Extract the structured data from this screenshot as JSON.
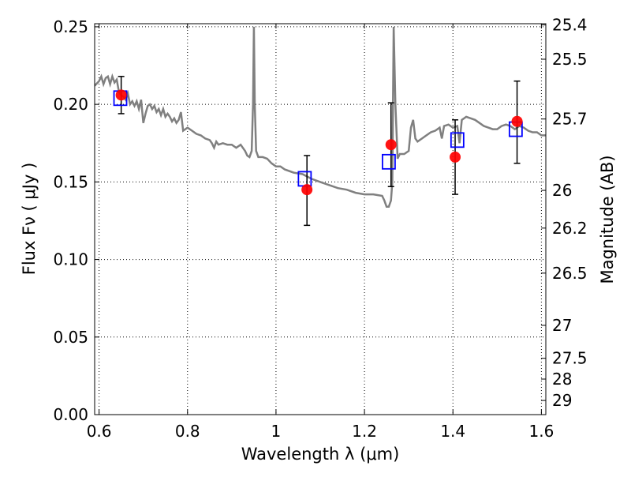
{
  "chart_data": {
    "type": "scatter",
    "xlabel": "Wavelength  λ (μm)",
    "ylabel": "Flux  Fν  ( μJy )",
    "y2label": "Magnitude (AB)",
    "xlim": [
      0.59,
      1.61
    ],
    "ylim": [
      0.0,
      0.252
    ],
    "grid": true,
    "x_ticks": [
      0.6,
      0.8,
      1.0,
      1.2,
      1.4,
      1.6
    ],
    "x_tick_labels": [
      "0.6",
      "0.8",
      "1",
      "1.2",
      "1.4",
      "1.6"
    ],
    "y_ticks": [
      0.0,
      0.05,
      0.1,
      0.15,
      0.2,
      0.25
    ],
    "y_tick_labels": [
      "0.00",
      "0.05",
      "0.10",
      "0.15",
      "0.20",
      "0.25"
    ],
    "y2_ticks": [
      {
        "label": "25.4",
        "mag": 25.4
      },
      {
        "label": "25.5",
        "mag": 25.5
      },
      {
        "label": "25.7",
        "mag": 25.7
      },
      {
        "label": "26",
        "mag": 26.0
      },
      {
        "label": "26.2",
        "mag": 26.2
      },
      {
        "label": "26.5",
        "mag": 26.5
      },
      {
        "label": "27",
        "mag": 27.0
      },
      {
        "label": "27.5",
        "mag": 27.5
      },
      {
        "label": "28",
        "mag": 28.0
      },
      {
        "label": "29",
        "mag": 29.0
      }
    ],
    "series": [
      {
        "kind": "line",
        "color": "#808080",
        "points": [
          [
            0.59,
            0.212
          ],
          [
            0.6,
            0.215
          ],
          [
            0.605,
            0.218
          ],
          [
            0.61,
            0.213
          ],
          [
            0.615,
            0.217
          ],
          [
            0.62,
            0.218
          ],
          [
            0.625,
            0.213
          ],
          [
            0.63,
            0.218
          ],
          [
            0.635,
            0.214
          ],
          [
            0.64,
            0.216
          ],
          [
            0.645,
            0.208
          ],
          [
            0.65,
            0.206
          ],
          [
            0.655,
            0.205
          ],
          [
            0.66,
            0.203
          ],
          [
            0.665,
            0.207
          ],
          [
            0.67,
            0.2
          ],
          [
            0.675,
            0.202
          ],
          [
            0.68,
            0.199
          ],
          [
            0.685,
            0.202
          ],
          [
            0.69,
            0.197
          ],
          [
            0.695,
            0.203
          ],
          [
            0.7,
            0.188
          ],
          [
            0.705,
            0.194
          ],
          [
            0.71,
            0.199
          ],
          [
            0.715,
            0.2
          ],
          [
            0.72,
            0.197
          ],
          [
            0.725,
            0.199
          ],
          [
            0.73,
            0.195
          ],
          [
            0.735,
            0.197
          ],
          [
            0.74,
            0.193
          ],
          [
            0.745,
            0.197
          ],
          [
            0.75,
            0.192
          ],
          [
            0.755,
            0.194
          ],
          [
            0.76,
            0.192
          ],
          [
            0.765,
            0.189
          ],
          [
            0.77,
            0.191
          ],
          [
            0.775,
            0.188
          ],
          [
            0.78,
            0.19
          ],
          [
            0.785,
            0.195
          ],
          [
            0.79,
            0.183
          ],
          [
            0.8,
            0.185
          ],
          [
            0.81,
            0.183
          ],
          [
            0.82,
            0.181
          ],
          [
            0.83,
            0.18
          ],
          [
            0.84,
            0.178
          ],
          [
            0.85,
            0.177
          ],
          [
            0.855,
            0.175
          ],
          [
            0.86,
            0.172
          ],
          [
            0.865,
            0.176
          ],
          [
            0.87,
            0.174
          ],
          [
            0.88,
            0.175
          ],
          [
            0.89,
            0.174
          ],
          [
            0.9,
            0.174
          ],
          [
            0.91,
            0.172
          ],
          [
            0.92,
            0.174
          ],
          [
            0.93,
            0.17
          ],
          [
            0.935,
            0.167
          ],
          [
            0.94,
            0.166
          ],
          [
            0.945,
            0.17
          ],
          [
            0.948,
            0.2
          ],
          [
            0.95,
            0.25
          ],
          [
            0.952,
            0.2
          ],
          [
            0.955,
            0.17
          ],
          [
            0.96,
            0.166
          ],
          [
            0.97,
            0.166
          ],
          [
            0.98,
            0.165
          ],
          [
            0.99,
            0.162
          ],
          [
            1.0,
            0.16
          ],
          [
            1.01,
            0.16
          ],
          [
            1.02,
            0.158
          ],
          [
            1.04,
            0.156
          ],
          [
            1.06,
            0.155
          ],
          [
            1.08,
            0.152
          ],
          [
            1.1,
            0.15
          ],
          [
            1.12,
            0.148
          ],
          [
            1.14,
            0.146
          ],
          [
            1.16,
            0.145
          ],
          [
            1.18,
            0.143
          ],
          [
            1.2,
            0.142
          ],
          [
            1.22,
            0.142
          ],
          [
            1.24,
            0.141
          ],
          [
            1.245,
            0.138
          ],
          [
            1.25,
            0.134
          ],
          [
            1.255,
            0.134
          ],
          [
            1.26,
            0.138
          ],
          [
            1.263,
            0.15
          ],
          [
            1.266,
            0.25
          ],
          [
            1.27,
            0.2
          ],
          [
            1.275,
            0.165
          ],
          [
            1.28,
            0.168
          ],
          [
            1.29,
            0.168
          ],
          [
            1.3,
            0.17
          ],
          [
            1.305,
            0.185
          ],
          [
            1.31,
            0.19
          ],
          [
            1.315,
            0.178
          ],
          [
            1.32,
            0.176
          ],
          [
            1.33,
            0.178
          ],
          [
            1.34,
            0.18
          ],
          [
            1.35,
            0.182
          ],
          [
            1.36,
            0.183
          ],
          [
            1.37,
            0.185
          ],
          [
            1.375,
            0.178
          ],
          [
            1.38,
            0.186
          ],
          [
            1.39,
            0.187
          ],
          [
            1.4,
            0.185
          ],
          [
            1.41,
            0.186
          ],
          [
            1.415,
            0.175
          ],
          [
            1.42,
            0.19
          ],
          [
            1.43,
            0.192
          ],
          [
            1.44,
            0.191
          ],
          [
            1.45,
            0.19
          ],
          [
            1.46,
            0.188
          ],
          [
            1.47,
            0.186
          ],
          [
            1.48,
            0.185
          ],
          [
            1.49,
            0.184
          ],
          [
            1.5,
            0.184
          ],
          [
            1.51,
            0.186
          ],
          [
            1.52,
            0.187
          ],
          [
            1.53,
            0.186
          ],
          [
            1.54,
            0.184
          ],
          [
            1.55,
            0.186
          ],
          [
            1.56,
            0.185
          ],
          [
            1.57,
            0.183
          ],
          [
            1.58,
            0.182
          ],
          [
            1.59,
            0.182
          ],
          [
            1.6,
            0.18
          ],
          [
            1.61,
            0.18
          ]
        ]
      },
      {
        "kind": "errorbar",
        "color": "#000000",
        "points": [
          {
            "x": 0.65,
            "y": 0.206,
            "lo": 0.194,
            "hi": 0.218
          },
          {
            "x": 1.07,
            "y": 0.145,
            "lo": 0.122,
            "hi": 0.167
          },
          {
            "x": 1.26,
            "y": 0.174,
            "lo": 0.147,
            "hi": 0.201
          },
          {
            "x": 1.405,
            "y": 0.166,
            "lo": 0.142,
            "hi": 0.19
          },
          {
            "x": 1.545,
            "y": 0.189,
            "lo": 0.162,
            "hi": 0.215
          }
        ]
      },
      {
        "kind": "scatter",
        "marker": "square",
        "color": "#0000ff",
        "points": [
          [
            0.648,
            0.204
          ],
          [
            1.065,
            0.152
          ],
          [
            1.255,
            0.163
          ],
          [
            1.41,
            0.177
          ],
          [
            1.542,
            0.184
          ]
        ]
      },
      {
        "kind": "scatter",
        "marker": "circle",
        "color": "#ff0000",
        "points": [
          [
            0.65,
            0.206
          ],
          [
            1.07,
            0.145
          ],
          [
            1.26,
            0.174
          ],
          [
            1.405,
            0.166
          ],
          [
            1.545,
            0.189
          ]
        ]
      }
    ]
  }
}
